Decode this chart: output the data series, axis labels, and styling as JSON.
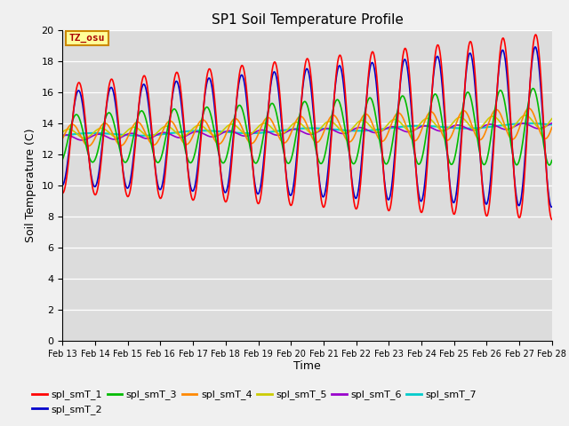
{
  "title": "SP1 Soil Temperature Profile",
  "xlabel": "Time",
  "ylabel": "Soil Temperature (C)",
  "ylim": [
    0,
    20
  ],
  "xlim": [
    13,
    28
  ],
  "xtick_labels": [
    "Feb 13",
    "Feb 14",
    "Feb 15",
    "Feb 16",
    "Feb 17",
    "Feb 18",
    "Feb 19",
    "Feb 20",
    "Feb 21",
    "Feb 22",
    "Feb 23",
    "Feb 24",
    "Feb 25",
    "Feb 26",
    "Feb 27",
    "Feb 28"
  ],
  "xtick_positions": [
    13,
    14,
    15,
    16,
    17,
    18,
    19,
    20,
    21,
    22,
    23,
    24,
    25,
    26,
    27,
    28
  ],
  "ytick_positions": [
    0,
    2,
    4,
    6,
    8,
    10,
    12,
    14,
    16,
    18,
    20
  ],
  "colors": {
    "spl_smT_1": "#ff0000",
    "spl_smT_2": "#0000cc",
    "spl_smT_3": "#00bb00",
    "spl_smT_4": "#ff8800",
    "spl_smT_5": "#cccc00",
    "spl_smT_6": "#9900cc",
    "spl_smT_7": "#00cccc"
  },
  "bg_color": "#dcdcdc",
  "fig_bg_color": "#f0f0f0",
  "annotation_text": "TZ_osu",
  "annotation_color": "#aa0000",
  "annotation_bg": "#ffff99",
  "annotation_border": "#cc8800",
  "legend_labels": [
    "spl_smT_1",
    "spl_smT_2",
    "spl_smT_3",
    "spl_smT_4",
    "spl_smT_5",
    "spl_smT_6",
    "spl_smT_7"
  ]
}
